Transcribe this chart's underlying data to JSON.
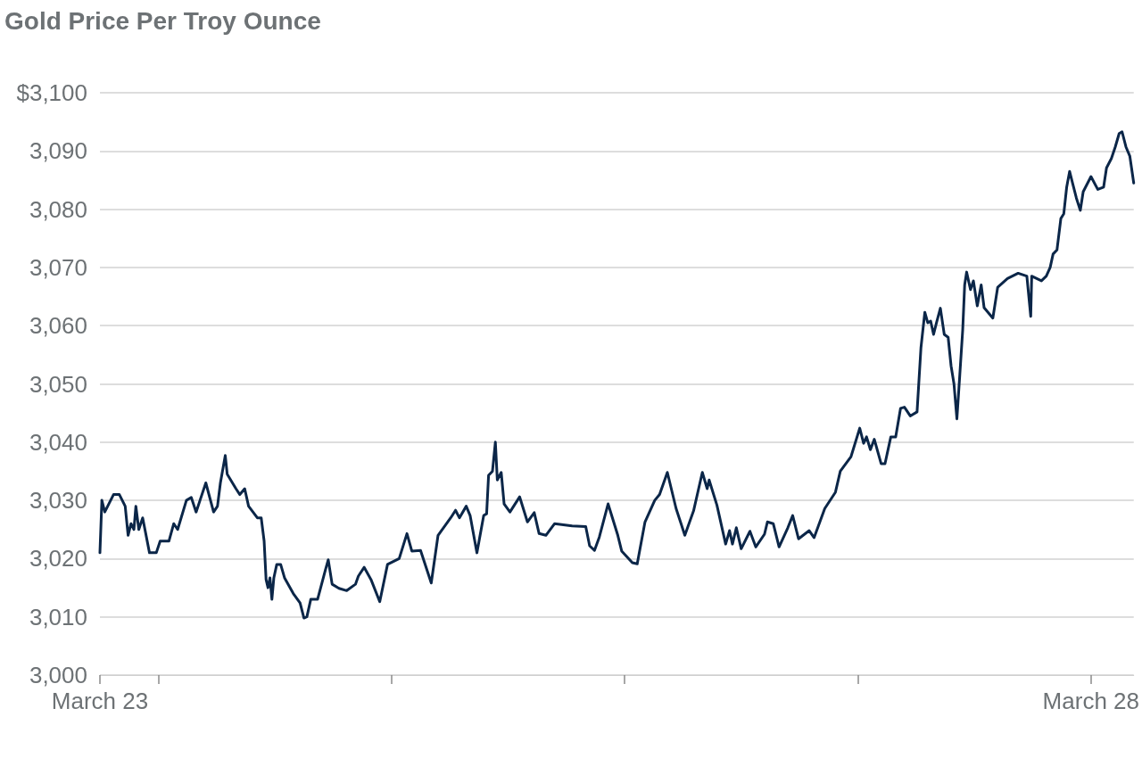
{
  "chart_data": {
    "type": "line",
    "title": "Gold Price Per Troy Ounce",
    "x": [
      "--03-23T18:00",
      "--03-23T18:12",
      "--03-23T18:30",
      "--03-23T19:24",
      "--03-23T20:00",
      "--03-23T20:36",
      "--03-23T20:54",
      "--03-23T21:12",
      "--03-23T21:30",
      "--03-23T21:42",
      "--03-23T22:00",
      "--03-23T22:24",
      "--03-23T23:06",
      "--03-23T23:48",
      "--03-24T00:12",
      "--03-24T01:06",
      "--03-24T01:36",
      "--03-24T02:00",
      "--03-24T02:54",
      "--03-24T03:24",
      "--03-24T03:54",
      "--03-24T04:18",
      "--03-24T04:54",
      "--03-24T05:42",
      "--03-24T06:06",
      "--03-24T06:24",
      "--03-24T06:54",
      "--03-24T07:06",
      "--03-24T08:00",
      "--03-24T08:24",
      "--03-24T08:54",
      "--03-24T09:18",
      "--03-24T10:12",
      "--03-24T10:36",
      "--03-24T10:54",
      "--03-24T11:06",
      "--03-24T11:18",
      "--03-24T11:30",
      "--03-24T11:42",
      "--03-24T11:54",
      "--03-24T12:12",
      "--03-24T12:36",
      "--03-24T13:00",
      "--03-24T13:54",
      "--03-24T14:36",
      "--03-24T15:00",
      "--03-24T15:18",
      "--03-24T15:42",
      "--03-24T16:24",
      "--03-24T17:12",
      "--03-24T17:30",
      "--03-24T17:54",
      "--03-24T18:36",
      "--03-24T19:24",
      "--03-24T20:18",
      "--03-24T20:36",
      "--03-24T21:12",
      "--03-24T21:54",
      "--03-24T22:48",
      "--03-24T23:36",
      "--03-25T00:48",
      "--03-25T01:36",
      "--03-25T02:06",
      "--03-25T03:00",
      "--03-25T04:06",
      "--03-25T04:48",
      "--03-25T06:06",
      "--03-25T06:36",
      "--03-25T07:00",
      "--03-25T07:42",
      "--03-25T08:06",
      "--03-25T08:48",
      "--03-25T09:30",
      "--03-25T09:48",
      "--03-25T10:00",
      "--03-25T10:24",
      "--03-25T10:42",
      "--03-25T10:54",
      "--03-25T11:18",
      "--03-25T11:36",
      "--03-25T12:12",
      "--03-25T13:12",
      "--03-25T14:00",
      "--03-25T14:42",
      "--03-25T15:12",
      "--03-25T15:54",
      "--03-25T16:48",
      "--03-25T18:36",
      "--03-25T20:00",
      "--03-25T20:24",
      "--03-25T20:54",
      "--03-25T21:24",
      "--03-25T22:18",
      "--03-25T23:18",
      "--03-25T23:42",
      "--03-26T00:48",
      "--03-26T01:18",
      "--03-26T02:06",
      "--03-26T03:06",
      "--03-26T03:36",
      "--03-26T04:24",
      "--03-26T05:18",
      "--03-26T06:12",
      "--03-26T07:06",
      "--03-26T08:00",
      "--03-26T08:30",
      "--03-26T08:42",
      "--03-26T09:30",
      "--03-26T10:24",
      "--03-26T10:48",
      "--03-26T11:06",
      "--03-26T11:30",
      "--03-26T12:00",
      "--03-26T12:54",
      "--03-26T13:30",
      "--03-26T14:24",
      "--03-26T14:42",
      "--03-26T15:18",
      "--03-26T15:54",
      "--03-26T16:48",
      "--03-26T17:18",
      "--03-26T17:54",
      "--03-26T19:00",
      "--03-26T19:30",
      "--03-26T20:36",
      "--03-26T21:42",
      "--03-26T22:12",
      "--03-26T23:18",
      "--03-27T00:12",
      "--03-27T00:36",
      "--03-27T00:54",
      "--03-27T01:18",
      "--03-27T01:42",
      "--03-27T02:24",
      "--03-27T02:48",
      "--03-27T03:24",
      "--03-27T03:54",
      "--03-27T04:24",
      "--03-27T04:48",
      "--03-27T05:24",
      "--03-27T06:06",
      "--03-27T06:30",
      "--03-27T06:54",
      "--03-27T07:12",
      "--03-27T07:30",
      "--03-27T07:48",
      "--03-27T08:06",
      "--03-27T08:30",
      "--03-27T08:54",
      "--03-27T09:18",
      "--03-27T09:36",
      "--03-27T09:54",
      "--03-27T10:12",
      "--03-27T10:30",
      "--03-27T10:48",
      "--03-27T11:00",
      "--03-27T11:12",
      "--03-27T11:36",
      "--03-27T11:54",
      "--03-27T12:18",
      "--03-27T12:42",
      "--03-27T13:00",
      "--03-27T13:54",
      "--03-27T14:24",
      "--03-27T15:24",
      "--03-27T16:30",
      "--03-27T17:24",
      "--03-27T17:48",
      "--03-27T17:54",
      "--03-27T18:54",
      "--03-27T19:24",
      "--03-27T19:48",
      "--03-27T20:06",
      "--03-27T20:30",
      "--03-27T20:54",
      "--03-27T21:12",
      "--03-27T21:30",
      "--03-27T21:48",
      "--03-27T22:06",
      "--03-27T22:30",
      "--03-27T22:54",
      "--03-27T23:12",
      "--03-28T00:00",
      "--03-28T00:42",
      "--03-28T01:18",
      "--03-28T01:36",
      "--03-28T02:06",
      "--03-28T02:30",
      "--03-28T02:54",
      "--03-28T03:12",
      "--03-28T03:36",
      "--03-28T04:00",
      "--03-28T04:24"
    ],
    "series": [
      {
        "color": "#0b2648",
        "values": [
          3021,
          3030,
          3028,
          3031,
          3031,
          3029,
          3024,
          3026,
          3025,
          3029,
          3025,
          3027,
          3021,
          3021,
          3023,
          3023,
          3026,
          3025,
          3030,
          3030.5,
          3028,
          3030,
          3033,
          3028,
          3029,
          3033,
          3037.7,
          3034.5,
          3032,
          3031,
          3032,
          3029,
          3027,
          3027,
          3023,
          3016.4,
          3015,
          3016.7,
          3013,
          3016.7,
          3019,
          3019,
          3016.7,
          3014,
          3012.4,
          3009.8,
          3010,
          3013,
          3013,
          3018,
          3019.8,
          3015.6,
          3014.9,
          3014.5,
          3015.6,
          3017,
          3018.5,
          3016.4,
          3012.6,
          3019,
          3020,
          3024.3,
          3021.3,
          3021.4,
          3015.8,
          3024,
          3027,
          3028.3,
          3027,
          3029,
          3027.4,
          3021,
          3027.4,
          3027.7,
          3034.3,
          3035,
          3040,
          3033.5,
          3034.8,
          3029.4,
          3028,
          3030.6,
          3026.3,
          3027.9,
          3024.3,
          3024,
          3026,
          3025.6,
          3025.5,
          3022.2,
          3021.4,
          3023.7,
          3029.4,
          3024,
          3021.3,
          3019.3,
          3019.1,
          3026.3,
          3030,
          3031,
          3034.8,
          3028.6,
          3024,
          3028.2,
          3034.8,
          3032,
          3033.5,
          3029.2,
          3022.5,
          3024.8,
          3022.5,
          3025.3,
          3021.7,
          3024.7,
          3022,
          3024.2,
          3026.3,
          3026,
          3022,
          3025.3,
          3027.4,
          3023.4,
          3024.8,
          3023.6,
          3028.6,
          3031.4,
          3035,
          3037.5,
          3042.4,
          3039.8,
          3040.9,
          3038.7,
          3040.5,
          3036.3,
          3036.3,
          3040.9,
          3040.9,
          3045.8,
          3046,
          3044.5,
          3045.2,
          3056.2,
          3062.3,
          3060.5,
          3060.8,
          3058.5,
          3060.5,
          3063,
          3058.5,
          3058,
          3053.1,
          3050,
          3044,
          3051.6,
          3059.3,
          3067,
          3069.2,
          3066.2,
          3067.7,
          3063.4,
          3067,
          3063.1,
          3061.3,
          3066.6,
          3068.1,
          3069,
          3068.5,
          3061.6,
          3068.5,
          3067.7,
          3068.5,
          3070,
          3072.3,
          3073,
          3078.4,
          3079.2,
          3083.8,
          3086.5,
          3084.5,
          3081.9,
          3079.8,
          3083,
          3085.6,
          3083.4,
          3083.8,
          3087.1,
          3088.7,
          3090.7,
          3093,
          3093.3,
          3090.7,
          3089.1,
          3084.5
        ]
      }
    ],
    "xlim": [
      "--03-23T18:00",
      "--03-28T04:24"
    ],
    "xticks": [
      {
        "value": "--03-23T18:00",
        "label": "March 23"
      },
      {
        "value": "--03-24",
        "label": null
      },
      {
        "value": "--03-25",
        "label": null
      },
      {
        "value": "--03-26",
        "label": null
      },
      {
        "value": "--03-27",
        "label": null
      },
      {
        "value": "--03-28",
        "label": "March 28"
      }
    ],
    "ylim": [
      3000,
      3100
    ],
    "yticks": [
      {
        "value": 3000,
        "label": "3,000"
      },
      {
        "value": 3010,
        "label": "3,010"
      },
      {
        "value": 3020,
        "label": "3,020"
      },
      {
        "value": 3030,
        "label": "3,030"
      },
      {
        "value": 3040,
        "label": "3,040"
      },
      {
        "value": 3050,
        "label": "3,050"
      },
      {
        "value": 3060,
        "label": "3,060"
      },
      {
        "value": 3070,
        "label": "3,070"
      },
      {
        "value": 3080,
        "label": "3,080"
      },
      {
        "value": 3090,
        "label": "3,090"
      },
      {
        "value": 3100,
        "label": "$3,100"
      }
    ],
    "grid": "y",
    "marker": "none",
    "line_style": "solid"
  }
}
